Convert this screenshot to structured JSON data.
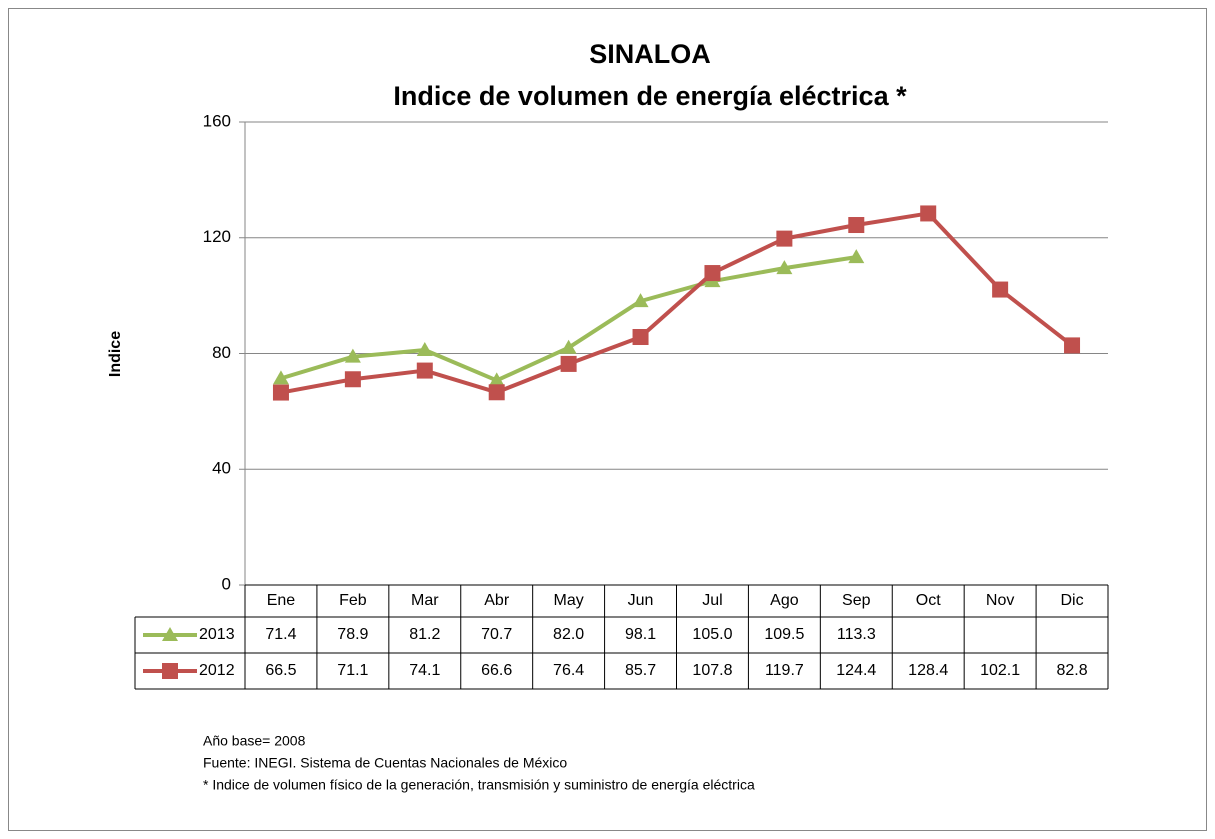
{
  "chart_data": {
    "type": "line",
    "title": "SINALOA",
    "subtitle": "Indice de volumen de energía eléctrica *",
    "y_label": "Indice",
    "categories": [
      "Ene",
      "Feb",
      "Mar",
      "Abr",
      "May",
      "Jun",
      "Jul",
      "Ago",
      "Sep",
      "Oct",
      "Nov",
      "Dic"
    ],
    "series": [
      {
        "name": "2013",
        "color": "#9bbb59",
        "marker": "triangle",
        "values": [
          71.4,
          78.9,
          81.2,
          70.7,
          82.0,
          98.1,
          105.0,
          109.5,
          113.3,
          null,
          null,
          null
        ],
        "value_labels": [
          "71.4",
          "78.9",
          "81.2",
          "70.7",
          "82.0",
          "98.1",
          "105.0",
          "109.5",
          "113.3",
          null,
          null,
          null
        ]
      },
      {
        "name": "2012",
        "color": "#c0504d",
        "marker": "square",
        "values": [
          66.5,
          71.1,
          74.1,
          66.6,
          76.4,
          85.7,
          107.8,
          119.7,
          124.4,
          128.4,
          102.1,
          82.8
        ],
        "value_labels": [
          "66.5",
          "71.1",
          "74.1",
          "66.6",
          "76.4",
          "85.7",
          "107.8",
          "119.7",
          "124.4",
          "128.4",
          "102.1",
          "82.8"
        ]
      }
    ],
    "ylim": [
      0,
      160
    ],
    "yticks": [
      0,
      40,
      80,
      120,
      160
    ],
    "grid": true,
    "notes": [
      "Año base= 2008",
      "Fuente: INEGI. Sistema de Cuentas Nacionales de México",
      "* Indice de volumen físico de la generación, transmisión y suministro de energía eléctrica"
    ]
  }
}
